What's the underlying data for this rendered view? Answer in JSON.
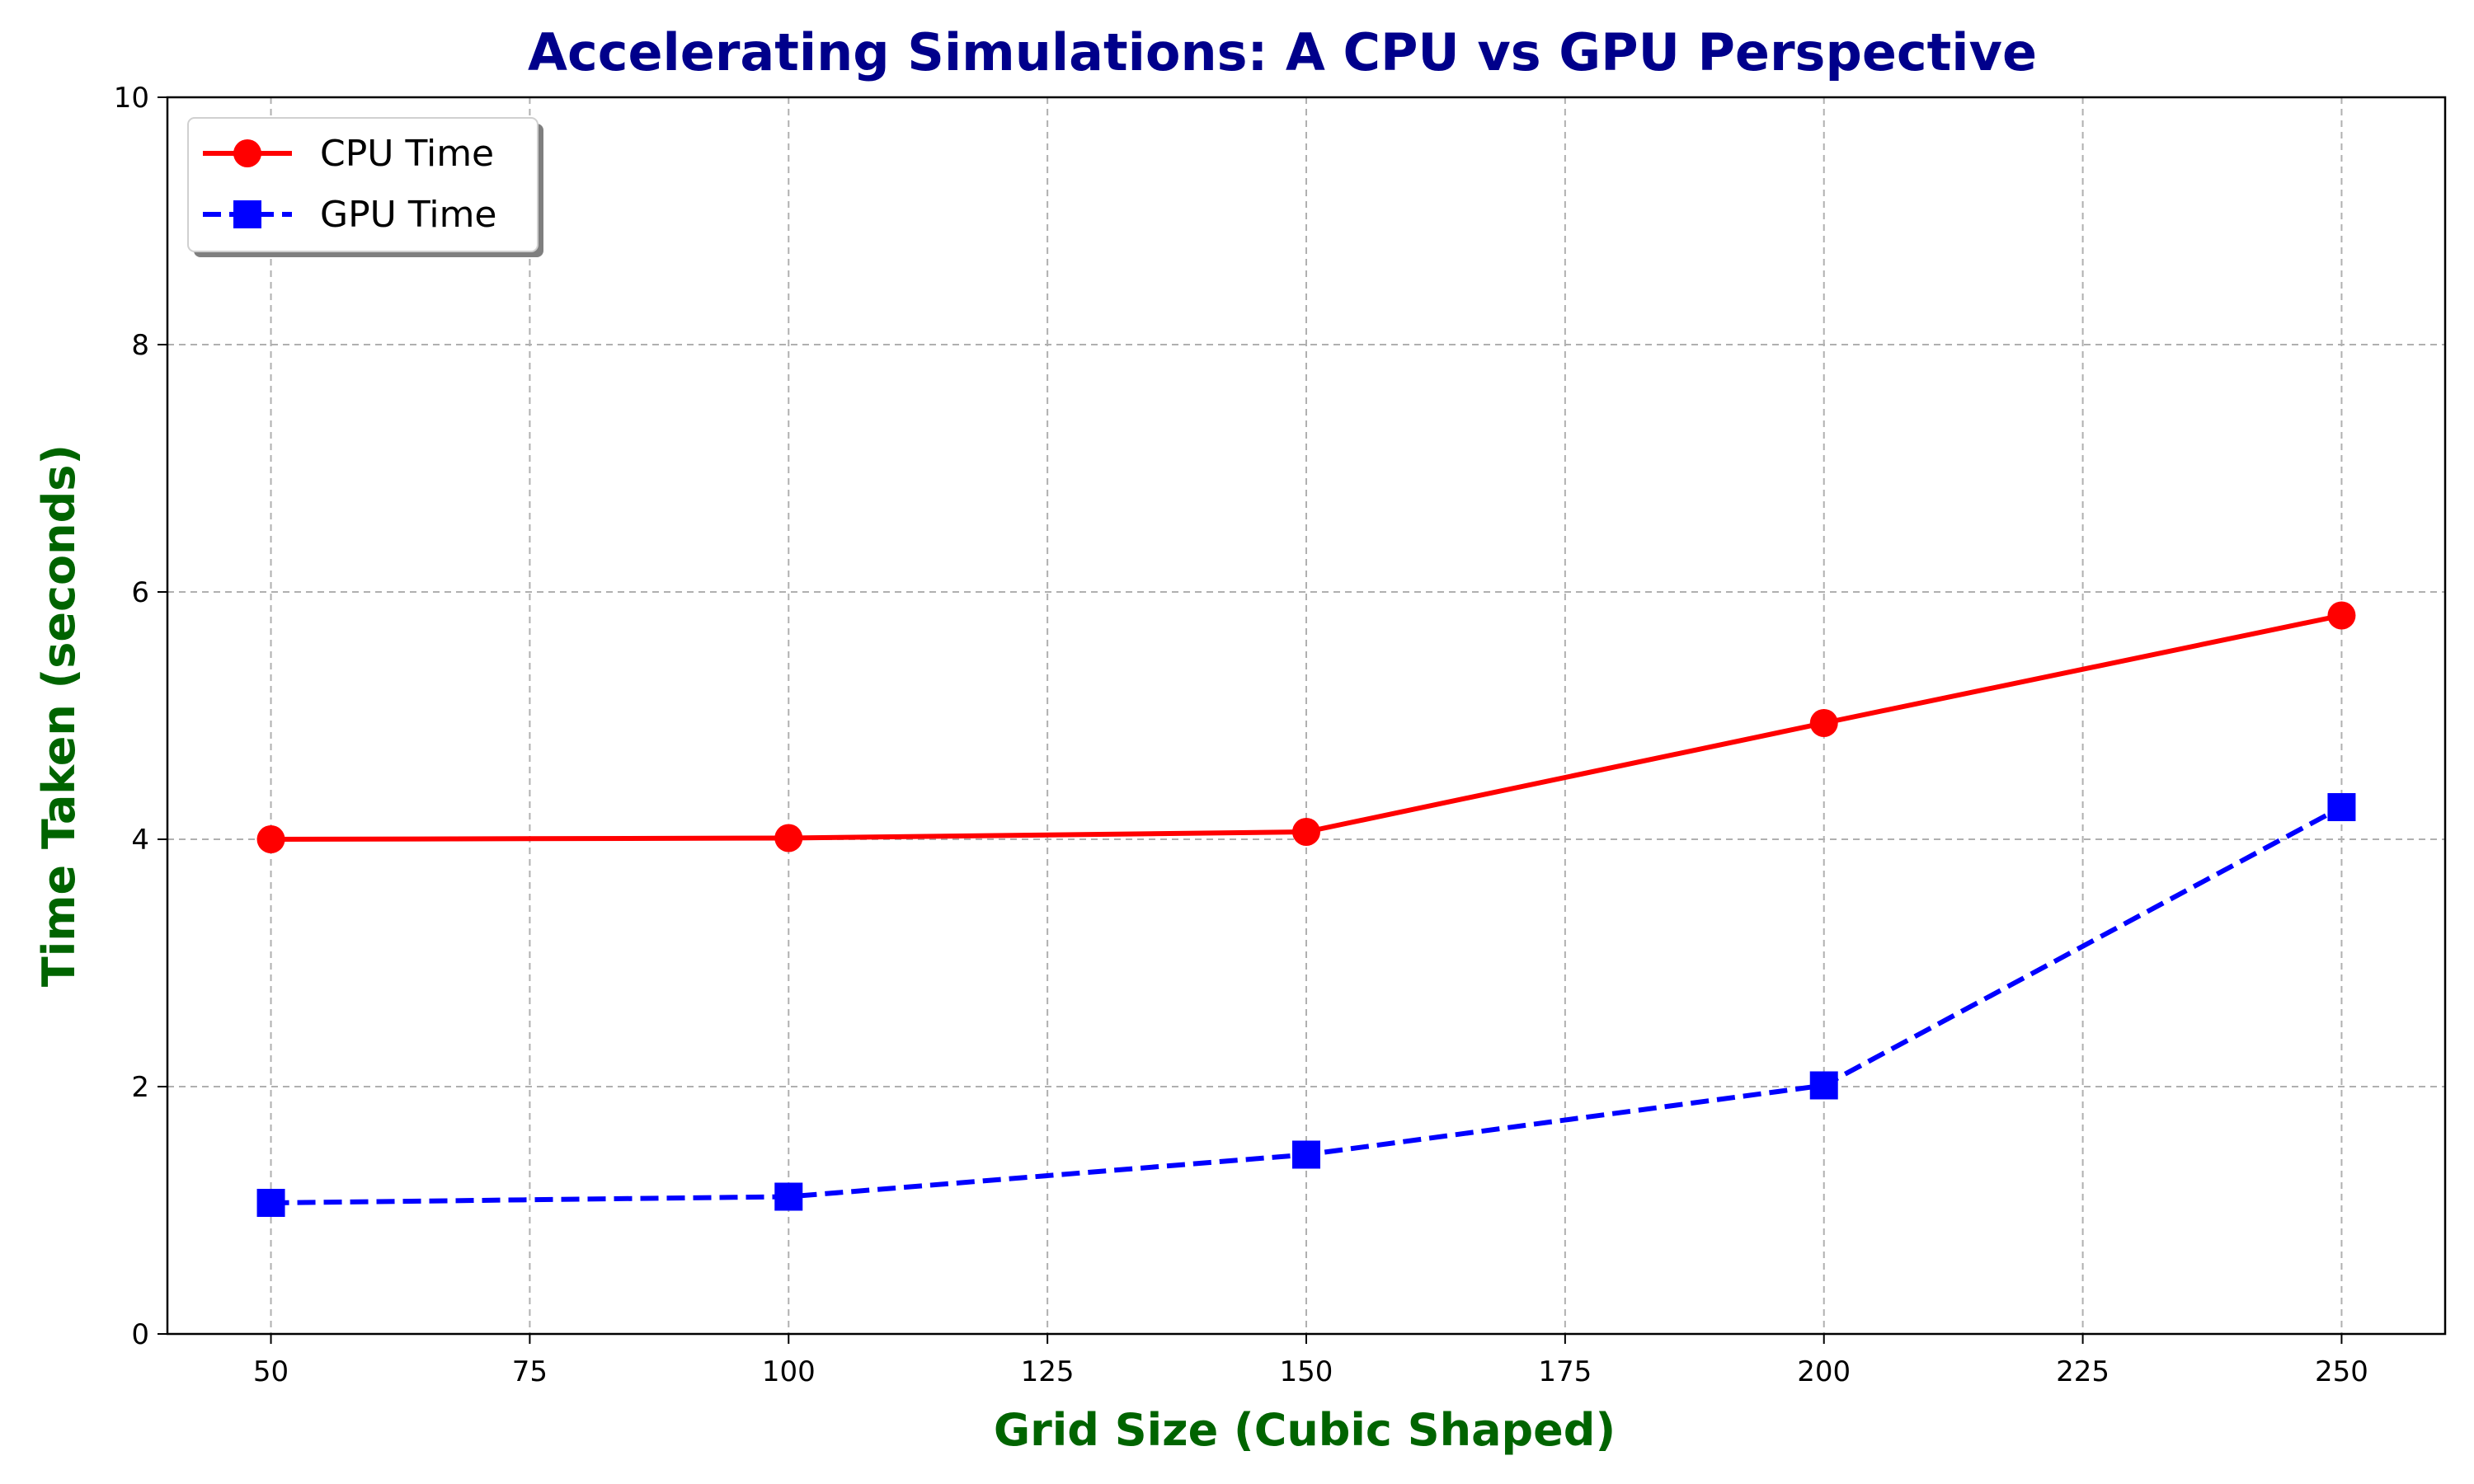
{
  "chart_data": {
    "type": "line",
    "title": "Accelerating Simulations: A CPU vs GPU Perspective",
    "xlabel": "Grid Size (Cubic Shaped)",
    "ylabel": "Time Taken (seconds)",
    "xlim": [
      40,
      260
    ],
    "ylim": [
      0,
      10
    ],
    "x": [
      50,
      100,
      150,
      200,
      250
    ],
    "xticks": [
      "50",
      "75",
      "100",
      "125",
      "150",
      "175",
      "200",
      "225",
      "250"
    ],
    "yticks": [
      "0",
      "2",
      "4",
      "6",
      "8",
      "10"
    ],
    "grid": true,
    "legend_position": "top-left",
    "series": [
      {
        "name": "CPU Time",
        "values": [
          4.0,
          4.01,
          4.06,
          4.94,
          5.81
        ],
        "color": "#ff0000",
        "marker": "circle",
        "line_style": "solid"
      },
      {
        "name": "GPU Time",
        "values": [
          1.06,
          1.11,
          1.45,
          2.01,
          4.26
        ],
        "color": "#0000ff",
        "marker": "square",
        "line_style": "dashed"
      }
    ],
    "colors": {
      "title": "#00008b",
      "axis_label": "#006400"
    }
  }
}
